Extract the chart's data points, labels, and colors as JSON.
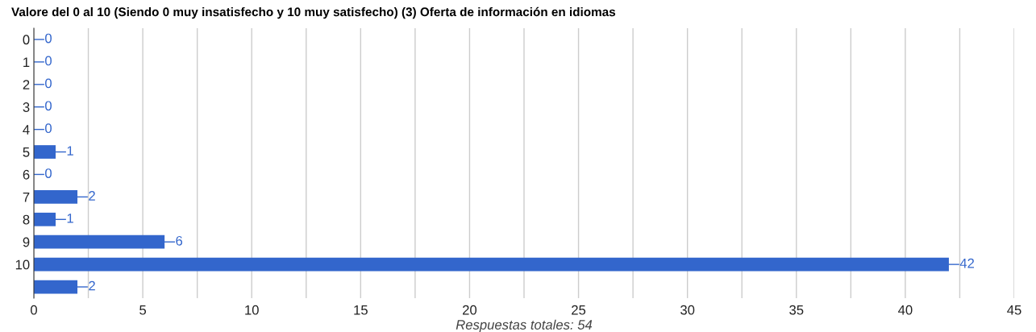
{
  "chart_data": {
    "type": "bar",
    "orientation": "horizontal",
    "title": "Valore del 0 al 10 (Siendo 0 muy insatisfecho y 10 muy satisfecho) (3) Oferta de información en idiomas",
    "xlabel": "Respuestas totales: 54",
    "categories": [
      "0",
      "1",
      "2",
      "3",
      "4",
      "5",
      "6",
      "7",
      "8",
      "9",
      "10",
      null
    ],
    "values": [
      0,
      0,
      0,
      0,
      0,
      1,
      0,
      2,
      1,
      6,
      42,
      2
    ],
    "color": "#3366cc",
    "data_labels": true,
    "xlim": [
      0,
      45
    ],
    "xticks": [
      0,
      {
        "value": 2.5,
        "label": null
      },
      5,
      {
        "value": 7.5,
        "label": null
      },
      10,
      {
        "value": 12.5,
        "label": null
      },
      15,
      {
        "value": 17.5,
        "label": null
      },
      20,
      {
        "value": 22.5,
        "label": null
      },
      25,
      {
        "value": 27.5,
        "label": null
      },
      30,
      {
        "value": 32.5,
        "label": null
      },
      35,
      {
        "value": 37.5,
        "label": null
      },
      40,
      {
        "value": 42.5,
        "label": null
      },
      45
    ],
    "grid": "x"
  }
}
